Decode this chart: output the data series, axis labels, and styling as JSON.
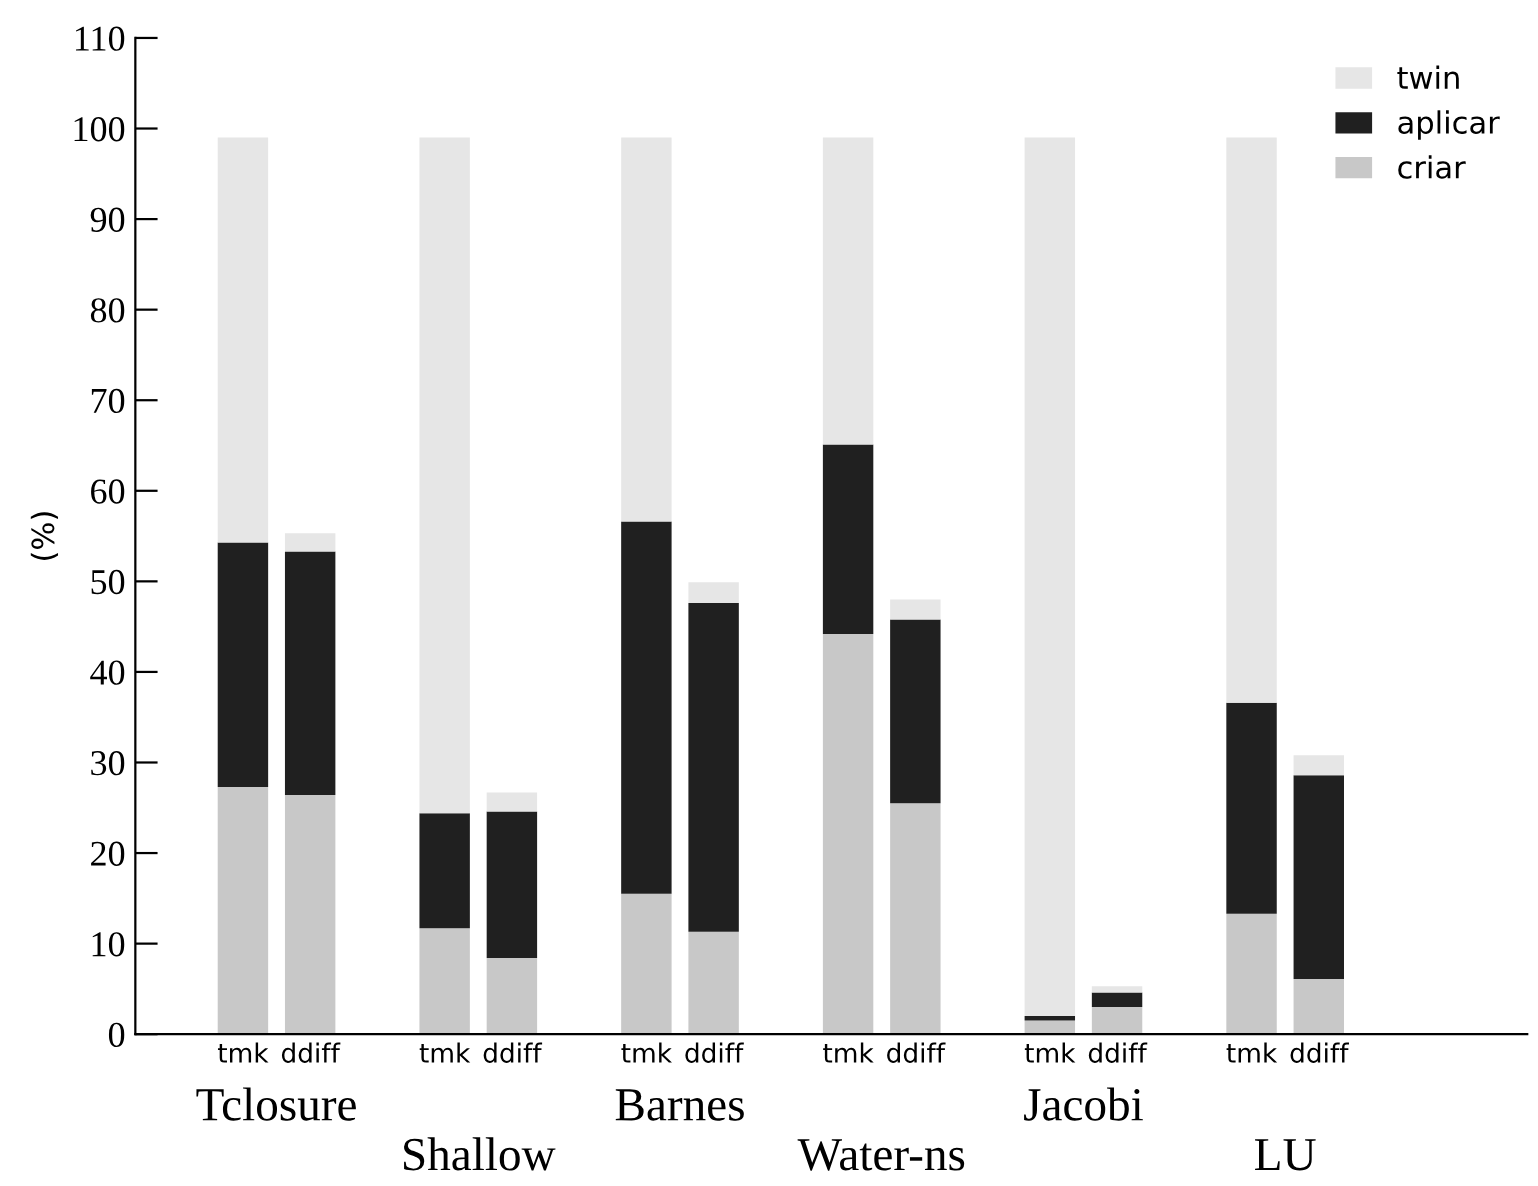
{
  "chart_data": {
    "type": "bar",
    "stacked": true,
    "ylabel": "(%)",
    "categories": [
      "tmk",
      "ddiff",
      null,
      "tmk",
      "ddiff",
      null,
      "tmk",
      "ddiff",
      null,
      "tmk",
      "ddiff",
      null,
      "tmk",
      "ddiff",
      null,
      "tmk",
      "ddiff",
      null
    ],
    "series": [
      {
        "name": "criar",
        "color": "#c8c8c8",
        "values": [
          27.3,
          26.4,
          null,
          11.7,
          8.4,
          null,
          15.5,
          11.3,
          null,
          44.2,
          25.5,
          null,
          1.5,
          3.0,
          null,
          13.3,
          6.1,
          null
        ]
      },
      {
        "name": "aplicar",
        "color": "#202020",
        "values": [
          27.0,
          26.9,
          null,
          12.7,
          16.2,
          null,
          41.1,
          36.3,
          null,
          20.9,
          20.3,
          null,
          0.5,
          1.6,
          null,
          23.3,
          22.5,
          null
        ]
      },
      {
        "name": "twin",
        "color": "#e6e6e6",
        "values": [
          44.7,
          2.0,
          null,
          74.6,
          2.1,
          null,
          42.4,
          2.3,
          null,
          33.9,
          2.2,
          null,
          97.0,
          0.7,
          null,
          62.4,
          2.2,
          null
        ]
      }
    ],
    "ylim": [
      0,
      110
    ],
    "yticks": [
      0,
      10,
      20,
      30,
      40,
      50,
      60,
      70,
      80,
      90,
      100,
      110
    ],
    "annotations": [
      "Tclosure",
      "Shallow",
      "Barnes",
      "Water-ns",
      "Jacobi",
      "LU"
    ],
    "legend": "top right",
    "grid": false
  }
}
